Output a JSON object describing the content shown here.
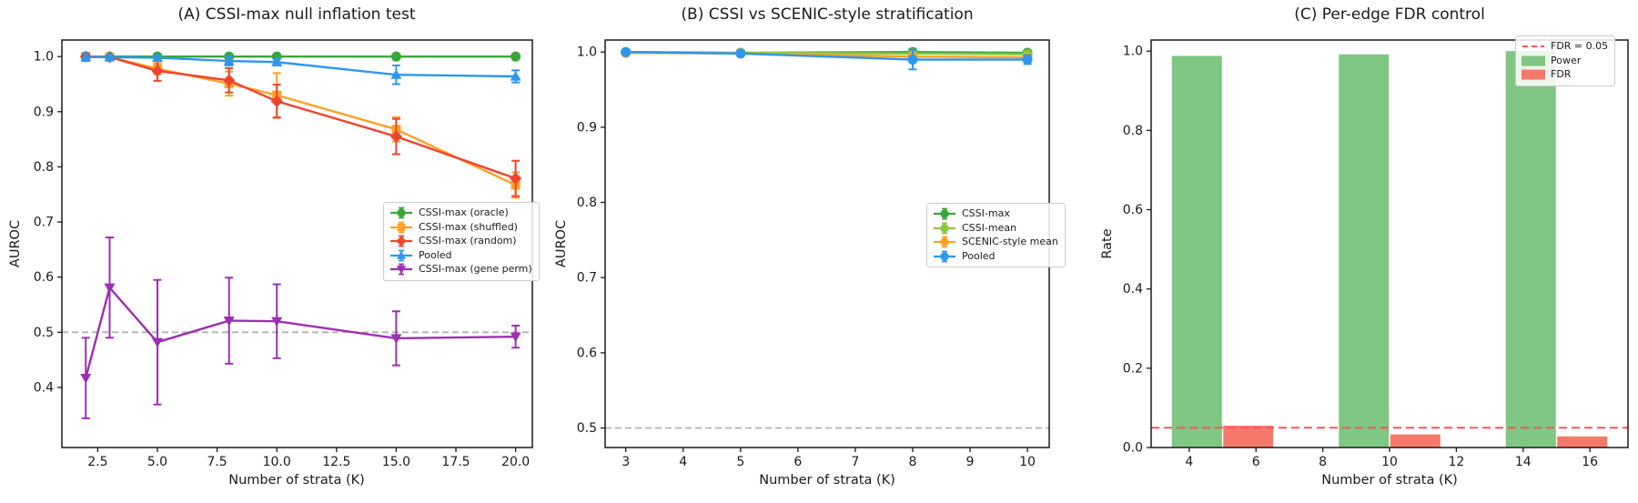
{
  "figure": {
    "background": "#ffffff",
    "text_color": "#1a1a1a"
  },
  "chart_data": [
    {
      "id": "A",
      "type": "line",
      "title": "(A) CSSI-max null inflation test",
      "xlabel": "Number of strata (K)",
      "ylabel": "AUROC",
      "xlim": [
        1.0,
        20.7
      ],
      "ylim": [
        0.291,
        1.03
      ],
      "grid": false,
      "legend_position": "center-right",
      "xticks": [
        2.5,
        5.0,
        7.5,
        10.0,
        12.5,
        15.0,
        17.5,
        20.0
      ],
      "xtick_labels": [
        "2.5",
        "5.0",
        "7.5",
        "10.0",
        "12.5",
        "15.0",
        "17.5",
        "20.0"
      ],
      "yticks": [
        0.4,
        0.5,
        0.6,
        0.7,
        0.8,
        0.9,
        1.0
      ],
      "ytick_labels": [
        "0.4",
        "0.5",
        "0.6",
        "0.7",
        "0.8",
        "0.9",
        "1.0"
      ],
      "ref_line": {
        "y": 0.5,
        "color": "#b3b3b3",
        "dash": "7 4",
        "width": 1.8
      },
      "x": [
        2,
        3,
        5,
        8,
        10,
        15,
        20
      ],
      "series": [
        {
          "name": "CSSI-max (oracle)",
          "color": "#3aa63a",
          "marker": "circle",
          "values": [
            1.0,
            1.0,
            1.0,
            1.0,
            1.0,
            1.0,
            1.0
          ],
          "errors": [
            0.003,
            0.003,
            0.002,
            0.003,
            0.002,
            0.002,
            0.002
          ]
        },
        {
          "name": "CSSI-max (shuffled)",
          "color": "#ffa024",
          "marker": "square",
          "values": [
            1.0,
            0.999,
            0.978,
            0.951,
            0.93,
            0.868,
            0.767
          ],
          "errors": [
            0.004,
            0.004,
            0.01,
            0.022,
            0.04,
            0.022,
            0.023
          ]
        },
        {
          "name": "CSSI-max (random)",
          "color": "#f0432e",
          "marker": "diamond",
          "values": [
            1.0,
            0.999,
            0.974,
            0.957,
            0.919,
            0.855,
            0.779
          ],
          "errors": [
            0.004,
            0.004,
            0.018,
            0.022,
            0.03,
            0.032,
            0.032
          ]
        },
        {
          "name": "Pooled",
          "color": "#2f96ec",
          "marker": "triangle-up",
          "values": [
            0.999,
            0.999,
            0.998,
            0.992,
            0.99,
            0.967,
            0.964
          ],
          "errors": [
            0.007,
            0.004,
            0.004,
            0.008,
            0.006,
            0.017,
            0.011
          ]
        },
        {
          "name": "CSSI-max (gene perm)",
          "color": "#9c2fb0",
          "marker": "triangle-down",
          "values": [
            0.417,
            0.581,
            0.482,
            0.521,
            0.52,
            0.489,
            0.492
          ],
          "errors": [
            0.073,
            0.091,
            0.113,
            0.078,
            0.067,
            0.049,
            0.02
          ]
        }
      ]
    },
    {
      "id": "B",
      "type": "line",
      "title": "(B) CSSI vs SCENIC-style stratification",
      "xlabel": "Number of strata (K)",
      "ylabel": "AUROC",
      "xlim": [
        2.64,
        10.38
      ],
      "ylim": [
        0.474,
        1.016
      ],
      "grid": false,
      "legend_position": "center-right",
      "xticks": [
        3,
        4,
        5,
        6,
        7,
        8,
        9,
        10
      ],
      "xtick_labels": [
        "3",
        "4",
        "5",
        "6",
        "7",
        "8",
        "9",
        "10"
      ],
      "yticks": [
        0.5,
        0.6,
        0.7,
        0.8,
        0.9,
        1.0
      ],
      "ytick_labels": [
        "0.5",
        "0.6",
        "0.7",
        "0.8",
        "0.9",
        "1.0"
      ],
      "ref_line": {
        "y": 0.5,
        "color": "#b3b3b3",
        "dash": "7 4",
        "width": 1.8
      },
      "x": [
        3,
        5,
        8,
        10
      ],
      "series": [
        {
          "name": "CSSI-max",
          "color": "#3aa63a",
          "marker": "circle",
          "values": [
            1.0,
            0.999,
            1.0,
            0.999
          ],
          "errors": [
            0.001,
            0.001,
            0.004,
            0.002
          ]
        },
        {
          "name": "CSSI-mean",
          "color": "#8cc63f",
          "marker": "circle",
          "values": [
            0.999,
            0.999,
            0.998,
            0.997
          ],
          "errors": [
            0.001,
            0.001,
            0.002,
            0.002
          ]
        },
        {
          "name": "SCENIC-style mean",
          "color": "#ffa024",
          "marker": "circle",
          "values": [
            0.999,
            0.998,
            0.994,
            0.993
          ],
          "errors": [
            0.001,
            0.002,
            0.003,
            0.003
          ]
        },
        {
          "name": "Pooled",
          "color": "#2f96ec",
          "marker": "circle",
          "values": [
            1.0,
            0.998,
            0.99,
            0.99
          ],
          "errors": [
            0.001,
            0.002,
            0.013,
            0.006
          ]
        }
      ]
    },
    {
      "id": "C",
      "type": "bar",
      "title": "(C) Per-edge FDR control",
      "xlabel": "Number of strata (K)",
      "ylabel": "Rate",
      "xlim": [
        2.86,
        17.14
      ],
      "ylim": [
        0,
        1.028
      ],
      "grid": false,
      "legend_position": "top-right",
      "xticks": [
        4,
        6,
        8,
        10,
        12,
        14,
        16
      ],
      "xtick_labels": [
        "4",
        "6",
        "8",
        "10",
        "12",
        "14",
        "16"
      ],
      "yticks": [
        0,
        0.2,
        0.4,
        0.6,
        0.8,
        1.0
      ],
      "ytick_labels": [
        "0.0",
        "0.2",
        "0.4",
        "0.6",
        "0.8",
        "1.0"
      ],
      "categories": [
        5,
        10,
        15
      ],
      "bar_width": 1.5,
      "bars": [
        {
          "name": "Power",
          "color": "#7fc783",
          "offset": -0.77,
          "values": [
            0.988,
            0.992,
            1.0
          ]
        },
        {
          "name": "FDR",
          "color": "#f4796b",
          "offset": 0.77,
          "values": [
            0.055,
            0.033,
            0.028
          ]
        }
      ],
      "ref_line": {
        "y": 0.05,
        "color": "#f95757",
        "dash": "9 5",
        "width": 2
      },
      "legend_entries": [
        {
          "label": "FDR = 0.05",
          "type": "dashed-line",
          "color": "#f95757"
        },
        {
          "label": "Power",
          "type": "patch",
          "color": "#7fc783"
        },
        {
          "label": "FDR",
          "type": "patch",
          "color": "#f4796b"
        }
      ]
    }
  ]
}
